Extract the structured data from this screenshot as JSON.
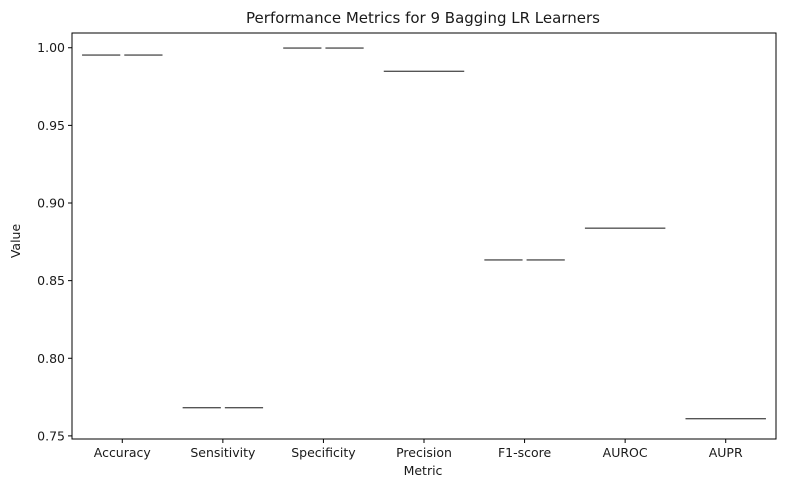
{
  "chart_data": {
    "type": "box",
    "title": "Performance Metrics for 9 Bagging LR Learners",
    "xlabel": "Metric",
    "ylabel": "Value",
    "categories": [
      "Accuracy",
      "Sensitivity",
      "Specificity",
      "Precision",
      "F1-score",
      "AUROC",
      "AUPR"
    ],
    "values": [
      0.9953,
      0.7682,
      0.9998,
      0.9848,
      0.8633,
      0.8838,
      0.7611
    ],
    "split_median_line": [
      true,
      true,
      true,
      false,
      true,
      false,
      false
    ],
    "ylim": [
      0.748,
      1.0095
    ],
    "yticks": [
      "0.75",
      "0.80",
      "0.85",
      "0.90",
      "0.95",
      "1.00"
    ],
    "grid": false,
    "legend": "none",
    "colors": {
      "median_line": "#555555",
      "axis": "#000000",
      "text": "#1a1a1a"
    }
  }
}
